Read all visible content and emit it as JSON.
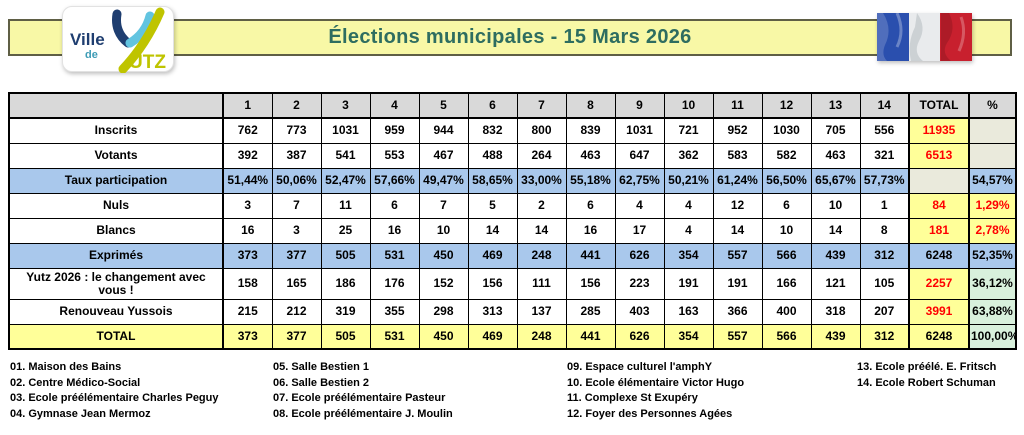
{
  "header": {
    "title": "Élections municipales - 15 Mars 2026",
    "logo": {
      "line1": "Ville",
      "line2": "de",
      "line3": "UTZ"
    },
    "flag": "french-flag"
  },
  "colors": {
    "banner_bg": "#F8F8A6",
    "title_text": "#2E6D60",
    "header_bg": "#D9D9D9",
    "white": "#FFFFFF",
    "blue": "#A9C8EC",
    "yellow": "#FFFF99",
    "green": "#D8F0DC",
    "beige": "#EAEADC",
    "red": "#FF0000",
    "black": "#000000"
  },
  "table": {
    "columns": [
      "1",
      "2",
      "3",
      "4",
      "5",
      "6",
      "7",
      "8",
      "9",
      "10",
      "11",
      "12",
      "13",
      "14"
    ],
    "total_header": "TOTAL",
    "pct_header": "%",
    "rows": [
      {
        "label": "Inscrits",
        "bg": "white",
        "values": [
          "762",
          "773",
          "1031",
          "959",
          "944",
          "832",
          "800",
          "839",
          "1031",
          "721",
          "952",
          "1030",
          "705",
          "556"
        ],
        "total": {
          "text": "11935",
          "bg": "yellow",
          "color": "red"
        },
        "pct": {
          "text": "",
          "bg": "beige",
          "color": "black"
        }
      },
      {
        "label": "Votants",
        "bg": "white",
        "values": [
          "392",
          "387",
          "541",
          "553",
          "467",
          "488",
          "264",
          "463",
          "647",
          "362",
          "583",
          "582",
          "463",
          "321"
        ],
        "total": {
          "text": "6513",
          "bg": "yellow",
          "color": "red"
        },
        "pct": {
          "text": "",
          "bg": "beige",
          "color": "black"
        }
      },
      {
        "label": "Taux participation",
        "bg": "blue",
        "values": [
          "51,44%",
          "50,06%",
          "52,47%",
          "57,66%",
          "49,47%",
          "58,65%",
          "33,00%",
          "55,18%",
          "62,75%",
          "50,21%",
          "61,24%",
          "56,50%",
          "65,67%",
          "57,73%"
        ],
        "total": {
          "text": "",
          "bg": "beige",
          "color": "black"
        },
        "pct": {
          "text": "54,57%",
          "bg": "blue",
          "color": "black"
        }
      },
      {
        "label": "Nuls",
        "bg": "white",
        "values": [
          "3",
          "7",
          "11",
          "6",
          "7",
          "5",
          "2",
          "6",
          "4",
          "4",
          "12",
          "6",
          "10",
          "1"
        ],
        "total": {
          "text": "84",
          "bg": "yellow",
          "color": "red"
        },
        "pct": {
          "text": "1,29%",
          "bg": "yellow",
          "color": "red"
        }
      },
      {
        "label": "Blancs",
        "bg": "white",
        "values": [
          "16",
          "3",
          "25",
          "16",
          "10",
          "14",
          "14",
          "16",
          "17",
          "4",
          "14",
          "10",
          "14",
          "8"
        ],
        "total": {
          "text": "181",
          "bg": "yellow",
          "color": "red"
        },
        "pct": {
          "text": "2,78%",
          "bg": "yellow",
          "color": "red"
        }
      },
      {
        "label": "Exprimés",
        "bg": "blue",
        "values": [
          "373",
          "377",
          "505",
          "531",
          "450",
          "469",
          "248",
          "441",
          "626",
          "354",
          "557",
          "566",
          "439",
          "312"
        ],
        "total": {
          "text": "6248",
          "bg": "blue",
          "color": "black"
        },
        "pct": {
          "text": "52,35%",
          "bg": "blue",
          "color": "black"
        }
      },
      {
        "label": "Yutz 2026 : le changement avec vous !",
        "bg": "white",
        "values": [
          "158",
          "165",
          "186",
          "176",
          "152",
          "156",
          "111",
          "156",
          "223",
          "191",
          "191",
          "166",
          "121",
          "105"
        ],
        "total": {
          "text": "2257",
          "bg": "yellow",
          "color": "red"
        },
        "pct": {
          "text": "36,12%",
          "bg": "green",
          "color": "black"
        }
      },
      {
        "label": "Renouveau Yussois",
        "bg": "white",
        "values": [
          "215",
          "212",
          "319",
          "355",
          "298",
          "313",
          "137",
          "285",
          "403",
          "163",
          "366",
          "400",
          "318",
          "207"
        ],
        "total": {
          "text": "3991",
          "bg": "yellow",
          "color": "red"
        },
        "pct": {
          "text": "63,88%",
          "bg": "green",
          "color": "black"
        }
      },
      {
        "label": "TOTAL",
        "bg": "yellow",
        "values": [
          "373",
          "377",
          "505",
          "531",
          "450",
          "469",
          "248",
          "441",
          "626",
          "354",
          "557",
          "566",
          "439",
          "312"
        ],
        "total": {
          "text": "6248",
          "bg": "yellow",
          "color": "black"
        },
        "pct": {
          "text": "100,00%",
          "bg": "green",
          "color": "black"
        }
      }
    ]
  },
  "legend": {
    "columns": [
      [
        "01. Maison des Bains",
        "02. Centre Médico-Social",
        "03. Ecole préélémentaire Charles Peguy",
        "04. Gymnase Jean Mermoz"
      ],
      [
        "05. Salle Bestien 1",
        "06. Salle Bestien 2",
        "07. Ecole préélémentaire Pasteur",
        "08. Ecole préélémentaire J. Moulin"
      ],
      [
        "09. Espace culturel l'amphY",
        "10. Ecole élémentaire Victor Hugo",
        "11. Complexe St Exupéry",
        "12. Foyer des Personnes Agées"
      ],
      [
        "13. Ecole préélé. E. Fritsch",
        "14. Ecole Robert Schuman"
      ]
    ]
  }
}
